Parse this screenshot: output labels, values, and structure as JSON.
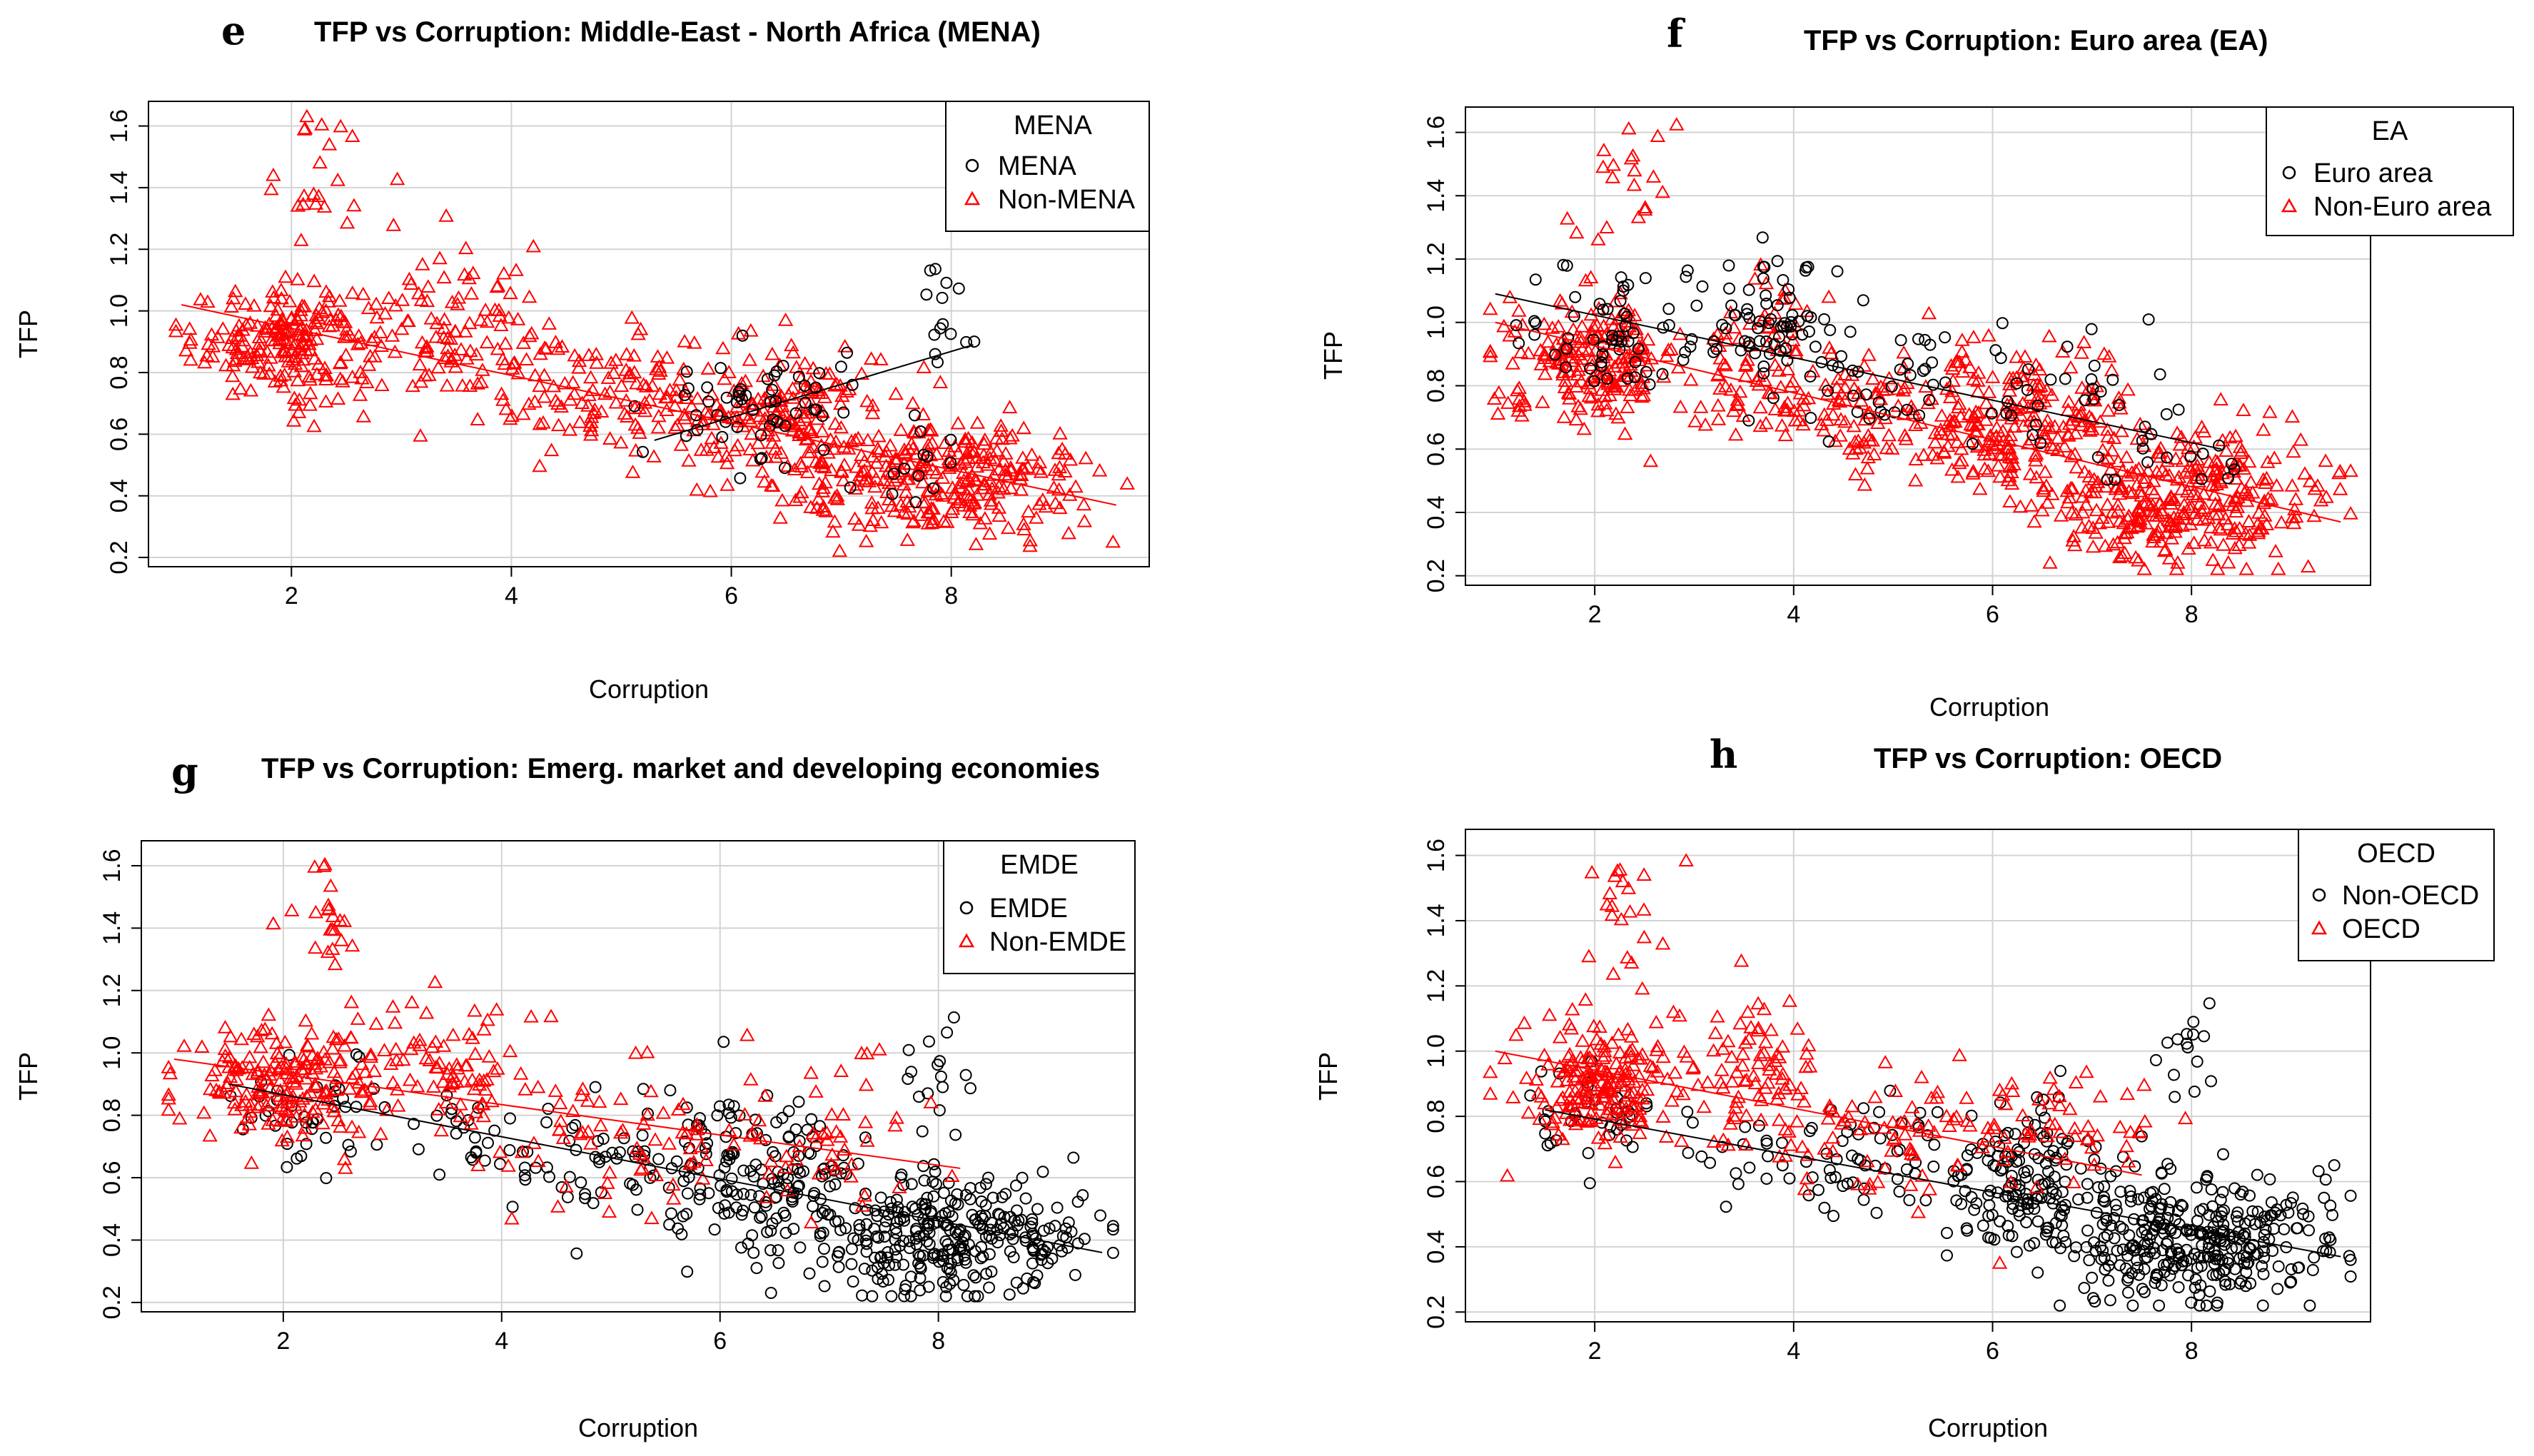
{
  "chart_data": [
    {
      "id": "e",
      "type": "scatter",
      "letter": "e",
      "title": "TFP vs Corruption: Middle-East - North Africa (MENA)",
      "xlabel": "Corruption",
      "ylabel": "TFP",
      "xlim": [
        0.7,
        9.8
      ],
      "ylim": [
        0.17,
        1.68
      ],
      "xticks": [
        2,
        4,
        6,
        8
      ],
      "yticks": [
        0.2,
        0.4,
        0.6,
        0.8,
        1.0,
        1.2,
        1.4,
        1.6
      ],
      "legend": {
        "title": "MENA",
        "position": "top-right",
        "entries": [
          {
            "label": "MENA",
            "marker": "circle",
            "color": "#000000"
          },
          {
            "label": "Non-MENA",
            "marker": "triangle",
            "color": "#ff0000"
          }
        ]
      },
      "series": [
        {
          "name": "Non-MENA",
          "marker": "triangle",
          "color": "#ff0000",
          "fit": [
            [
              1.0,
              1.02
            ],
            [
              9.5,
              0.37
            ]
          ],
          "clusters": [
            {
              "cx": 2.0,
              "cy": 0.9,
              "sx": 0.45,
              "sy": 0.09,
              "n": 220
            },
            {
              "cx": 3.6,
              "cy": 0.95,
              "sx": 0.35,
              "sy": 0.12,
              "n": 90
            },
            {
              "cx": 4.9,
              "cy": 0.72,
              "sx": 0.6,
              "sy": 0.1,
              "n": 120
            },
            {
              "cx": 6.4,
              "cy": 0.68,
              "sx": 0.5,
              "sy": 0.12,
              "n": 170
            },
            {
              "cx": 7.9,
              "cy": 0.45,
              "sx": 0.7,
              "sy": 0.1,
              "n": 300
            },
            {
              "cx": 2.3,
              "cy": 1.42,
              "sx": 0.25,
              "sy": 0.12,
              "n": 22
            }
          ]
        },
        {
          "name": "MENA",
          "marker": "circle",
          "color": "#000000",
          "fit": [
            [
              5.3,
              0.58
            ],
            [
              8.2,
              0.89
            ]
          ],
          "clusters": [
            {
              "cx": 6.3,
              "cy": 0.68,
              "sx": 0.5,
              "sy": 0.1,
              "n": 55
            },
            {
              "cx": 7.9,
              "cy": 1.0,
              "sx": 0.15,
              "sy": 0.09,
              "n": 14
            },
            {
              "cx": 7.6,
              "cy": 0.5,
              "sx": 0.3,
              "sy": 0.08,
              "n": 12
            }
          ]
        }
      ]
    },
    {
      "id": "f",
      "type": "scatter",
      "letter": "f",
      "title": "TFP vs Corruption: Euro area (EA)",
      "xlabel": "Corruption",
      "ylabel": "TFP",
      "xlim": [
        0.7,
        9.8
      ],
      "ylim": [
        0.17,
        1.68
      ],
      "xticks": [
        2,
        4,
        6,
        8
      ],
      "yticks": [
        0.2,
        0.4,
        0.6,
        0.8,
        1.0,
        1.2,
        1.4,
        1.6
      ],
      "legend": {
        "title": "EA",
        "position": "top-right",
        "entries": [
          {
            "label": "Euro area",
            "marker": "circle",
            "color": "#000000"
          },
          {
            "label": "Non-Euro area",
            "marker": "triangle",
            "color": "#ff0000"
          }
        ]
      },
      "series": [
        {
          "name": "Non-Euro area",
          "marker": "triangle",
          "color": "#ff0000",
          "fit": [
            [
              1.0,
              1.0
            ],
            [
              9.5,
              0.37
            ]
          ],
          "clusters": [
            {
              "cx": 2.0,
              "cy": 0.88,
              "sx": 0.45,
              "sy": 0.09,
              "n": 200
            },
            {
              "cx": 3.6,
              "cy": 0.85,
              "sx": 0.4,
              "sy": 0.14,
              "n": 90
            },
            {
              "cx": 5.0,
              "cy": 0.7,
              "sx": 0.6,
              "sy": 0.1,
              "n": 120
            },
            {
              "cx": 6.4,
              "cy": 0.68,
              "sx": 0.5,
              "sy": 0.12,
              "n": 180
            },
            {
              "cx": 7.9,
              "cy": 0.45,
              "sx": 0.7,
              "sy": 0.1,
              "n": 320
            },
            {
              "cx": 2.3,
              "cy": 1.42,
              "sx": 0.25,
              "sy": 0.12,
              "n": 22
            }
          ]
        },
        {
          "name": "Euro area",
          "marker": "circle",
          "color": "#000000",
          "fit": [
            [
              1.0,
              1.09
            ],
            [
              8.3,
              0.6
            ]
          ],
          "clusters": [
            {
              "cx": 2.3,
              "cy": 0.98,
              "sx": 0.5,
              "sy": 0.12,
              "n": 60
            },
            {
              "cx": 3.9,
              "cy": 0.98,
              "sx": 0.4,
              "sy": 0.12,
              "n": 70
            },
            {
              "cx": 5.0,
              "cy": 0.8,
              "sx": 0.5,
              "sy": 0.1,
              "n": 35
            },
            {
              "cx": 6.6,
              "cy": 0.78,
              "sx": 0.5,
              "sy": 0.1,
              "n": 30
            },
            {
              "cx": 7.7,
              "cy": 0.58,
              "sx": 0.4,
              "sy": 0.08,
              "n": 15
            }
          ]
        }
      ]
    },
    {
      "id": "g",
      "type": "scatter",
      "letter": "g",
      "title": "TFP vs Corruption: Emerg. market and developing economies",
      "xlabel": "Corruption",
      "ylabel": "TFP",
      "xlim": [
        0.7,
        9.8
      ],
      "ylim": [
        0.17,
        1.68
      ],
      "xticks": [
        2,
        4,
        6,
        8
      ],
      "yticks": [
        0.2,
        0.4,
        0.6,
        0.8,
        1.0,
        1.2,
        1.4,
        1.6
      ],
      "legend": {
        "title": "EMDE",
        "position": "top-right",
        "entries": [
          {
            "label": "EMDE",
            "marker": "circle",
            "color": "#000000"
          },
          {
            "label": "Non-EMDE",
            "marker": "triangle",
            "color": "#ff0000"
          }
        ]
      },
      "series": [
        {
          "name": "EMDE",
          "marker": "circle",
          "color": "#000000",
          "fit": [
            [
              1.5,
              0.9
            ],
            [
              9.5,
              0.36
            ]
          ],
          "clusters": [
            {
              "cx": 2.3,
              "cy": 0.82,
              "sx": 0.4,
              "sy": 0.09,
              "n": 40
            },
            {
              "cx": 4.5,
              "cy": 0.68,
              "sx": 0.7,
              "sy": 0.1,
              "n": 70
            },
            {
              "cx": 6.3,
              "cy": 0.62,
              "sx": 0.5,
              "sy": 0.12,
              "n": 150
            },
            {
              "cx": 8.0,
              "cy": 0.42,
              "sx": 0.7,
              "sy": 0.1,
              "n": 320
            },
            {
              "cx": 8.0,
              "cy": 0.95,
              "sx": 0.2,
              "sy": 0.1,
              "n": 15
            }
          ]
        },
        {
          "name": "Non-EMDE",
          "marker": "triangle",
          "color": "#ff0000",
          "fit": [
            [
              1.0,
              0.98
            ],
            [
              8.2,
              0.63
            ]
          ],
          "clusters": [
            {
              "cx": 2.0,
              "cy": 0.9,
              "sx": 0.45,
              "sy": 0.09,
              "n": 200
            },
            {
              "cx": 3.6,
              "cy": 0.95,
              "sx": 0.35,
              "sy": 0.12,
              "n": 70
            },
            {
              "cx": 5.0,
              "cy": 0.72,
              "sx": 0.6,
              "sy": 0.1,
              "n": 60
            },
            {
              "cx": 6.8,
              "cy": 0.72,
              "sx": 0.6,
              "sy": 0.13,
              "n": 55
            },
            {
              "cx": 2.3,
              "cy": 1.42,
              "sx": 0.25,
              "sy": 0.12,
              "n": 22
            }
          ]
        }
      ]
    },
    {
      "id": "h",
      "type": "scatter",
      "letter": "h",
      "title": "TFP vs Corruption: OECD",
      "xlabel": "Corruption",
      "ylabel": "TFP",
      "xlim": [
        0.7,
        9.8
      ],
      "ylim": [
        0.17,
        1.68
      ],
      "xticks": [
        2,
        4,
        6,
        8
      ],
      "yticks": [
        0.2,
        0.4,
        0.6,
        0.8,
        1.0,
        1.2,
        1.4,
        1.6
      ],
      "legend": {
        "title": "OECD",
        "position": "top-right",
        "entries": [
          {
            "label": "Non-OECD",
            "marker": "circle",
            "color": "#000000"
          },
          {
            "label": "OECD",
            "marker": "triangle",
            "color": "#ff0000"
          }
        ]
      },
      "series": [
        {
          "name": "Non-OECD",
          "marker": "circle",
          "color": "#000000",
          "fit": [
            [
              1.5,
              0.82
            ],
            [
              9.5,
              0.37
            ]
          ],
          "clusters": [
            {
              "cx": 2.0,
              "cy": 0.8,
              "sx": 0.4,
              "sy": 0.08,
              "n": 40
            },
            {
              "cx": 4.6,
              "cy": 0.65,
              "sx": 0.7,
              "sy": 0.1,
              "n": 70
            },
            {
              "cx": 6.4,
              "cy": 0.62,
              "sx": 0.5,
              "sy": 0.12,
              "n": 160
            },
            {
              "cx": 8.0,
              "cy": 0.42,
              "sx": 0.7,
              "sy": 0.1,
              "n": 330
            },
            {
              "cx": 8.0,
              "cy": 0.98,
              "sx": 0.2,
              "sy": 0.1,
              "n": 15
            }
          ]
        },
        {
          "name": "OECD",
          "marker": "triangle",
          "color": "#ff0000",
          "fit": [
            [
              1.0,
              1.0
            ],
            [
              7.5,
              0.62
            ]
          ],
          "clusters": [
            {
              "cx": 2.0,
              "cy": 0.9,
              "sx": 0.45,
              "sy": 0.09,
              "n": 200
            },
            {
              "cx": 3.6,
              "cy": 0.95,
              "sx": 0.35,
              "sy": 0.12,
              "n": 80
            },
            {
              "cx": 5.0,
              "cy": 0.75,
              "sx": 0.6,
              "sy": 0.1,
              "n": 60
            },
            {
              "cx": 6.6,
              "cy": 0.75,
              "sx": 0.6,
              "sy": 0.13,
              "n": 60
            },
            {
              "cx": 2.3,
              "cy": 1.42,
              "sx": 0.25,
              "sy": 0.12,
              "n": 22
            }
          ]
        }
      ]
    }
  ]
}
